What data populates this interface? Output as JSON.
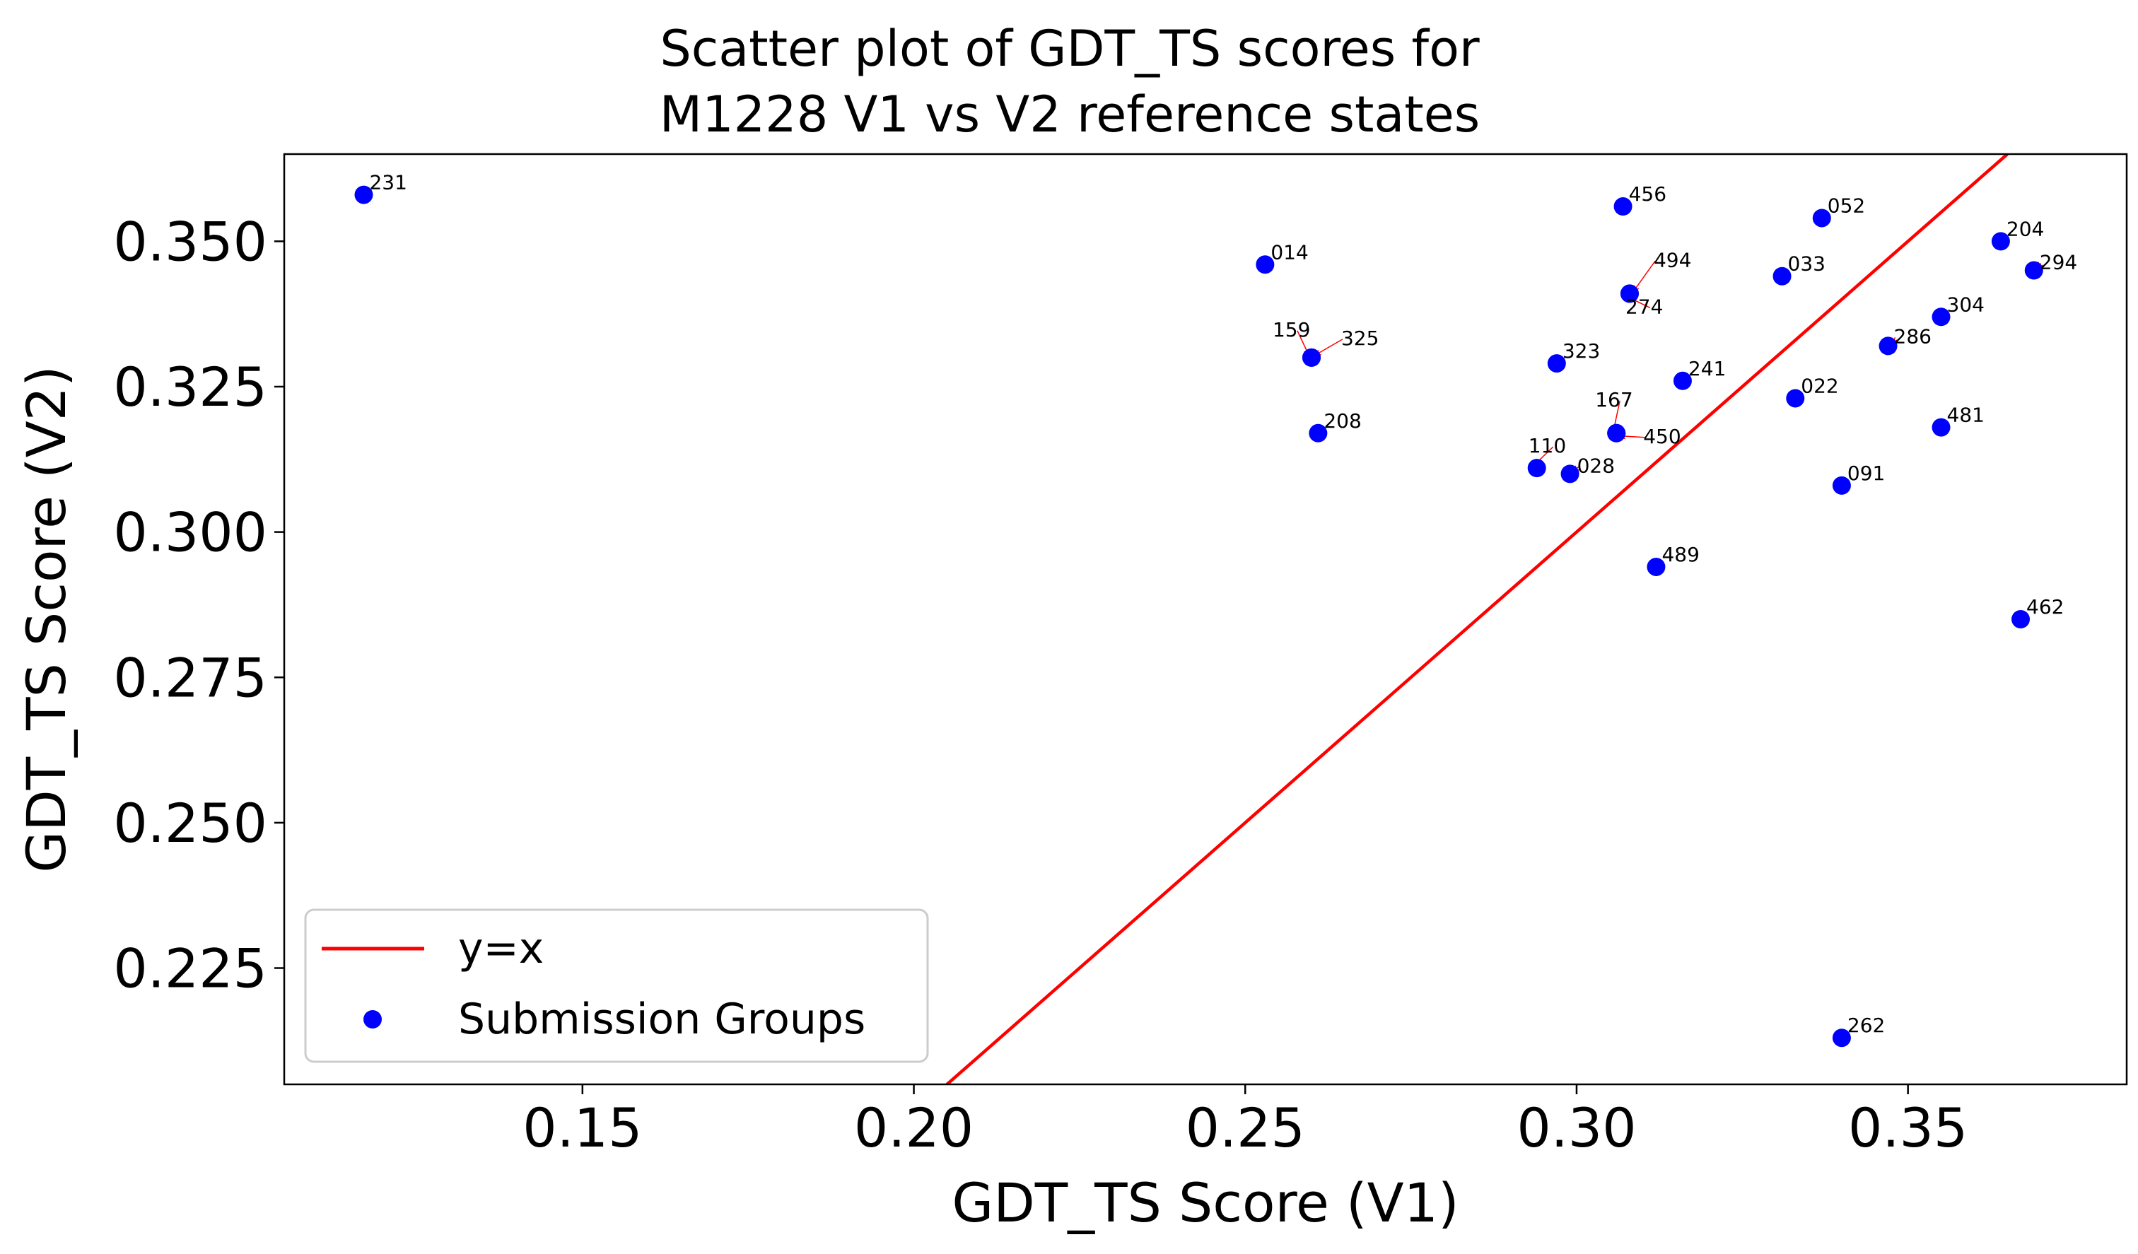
{
  "chart_data": {
    "type": "scatter",
    "title_lines": [
      "Scatter plot of GDT_TS scores for",
      "M1228 V1 vs V2 reference states"
    ],
    "xlabel": "GDT_TS Score (V1)",
    "ylabel": "GDT_TS Score (V2)",
    "xlim": [
      0.105,
      0.383
    ],
    "ylim": [
      0.205,
      0.365
    ],
    "x_ticks": [
      0.15,
      0.2,
      0.25,
      0.3,
      0.35
    ],
    "x_tick_labels": [
      "0.15",
      "0.20",
      "0.25",
      "0.30",
      "0.35"
    ],
    "y_ticks": [
      0.225,
      0.25,
      0.275,
      0.3,
      0.325,
      0.35
    ],
    "y_tick_labels": [
      "0.225",
      "0.250",
      "0.275",
      "0.300",
      "0.325",
      "0.350"
    ],
    "grid": false,
    "legend": {
      "placement": "lower-left",
      "entries": [
        {
          "label": "y=x",
          "kind": "line",
          "color": "#ff0000"
        },
        {
          "label": "Submission Groups",
          "kind": "marker",
          "color": "#0000ff"
        }
      ]
    },
    "line": {
      "name": "y=x",
      "color": "#ff0000",
      "slope": 1,
      "intercept": 0
    },
    "series": [
      {
        "name": "Submission Groups",
        "color": "#0000ff",
        "points": [
          {
            "label": "231",
            "x": 0.117,
            "y": 0.358
          },
          {
            "label": "014",
            "x": 0.253,
            "y": 0.346
          },
          {
            "label": "159",
            "x": 0.26,
            "y": 0.33
          },
          {
            "label": "325",
            "x": 0.26,
            "y": 0.33
          },
          {
            "label": "208",
            "x": 0.261,
            "y": 0.317
          },
          {
            "label": "110",
            "x": 0.294,
            "y": 0.311
          },
          {
            "label": "028",
            "x": 0.299,
            "y": 0.31
          },
          {
            "label": "323",
            "x": 0.297,
            "y": 0.329
          },
          {
            "label": "167",
            "x": 0.306,
            "y": 0.317
          },
          {
            "label": "450",
            "x": 0.306,
            "y": 0.317
          },
          {
            "label": "456",
            "x": 0.307,
            "y": 0.356
          },
          {
            "label": "494",
            "x": 0.308,
            "y": 0.341
          },
          {
            "label": "274",
            "x": 0.308,
            "y": 0.341
          },
          {
            "label": "489",
            "x": 0.312,
            "y": 0.294
          },
          {
            "label": "241",
            "x": 0.316,
            "y": 0.326
          },
          {
            "label": "033",
            "x": 0.331,
            "y": 0.344
          },
          {
            "label": "022",
            "x": 0.333,
            "y": 0.323
          },
          {
            "label": "052",
            "x": 0.337,
            "y": 0.354
          },
          {
            "label": "091",
            "x": 0.34,
            "y": 0.308
          },
          {
            "label": "262",
            "x": 0.34,
            "y": 0.213
          },
          {
            "label": "286",
            "x": 0.347,
            "y": 0.332
          },
          {
            "label": "304",
            "x": 0.355,
            "y": 0.337
          },
          {
            "label": "481",
            "x": 0.355,
            "y": 0.318
          },
          {
            "label": "204",
            "x": 0.364,
            "y": 0.35
          },
          {
            "label": "462",
            "x": 0.367,
            "y": 0.285
          },
          {
            "label": "294",
            "x": 0.369,
            "y": 0.345
          }
        ]
      }
    ]
  }
}
